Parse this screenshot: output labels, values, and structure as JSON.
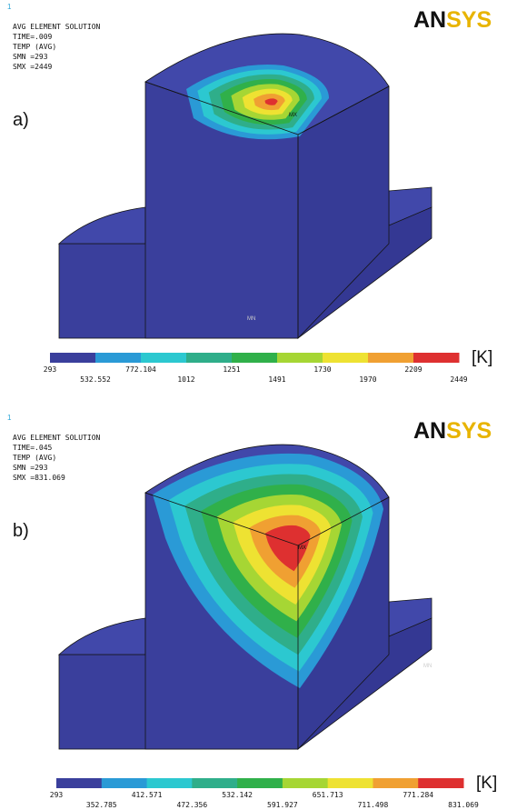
{
  "panels": [
    {
      "index": "1",
      "header": [
        "AVG ELEMENT SOLUTION",
        "TIME=.009",
        "TEMP      (AVG)",
        "SMN =293",
        "SMX =2449"
      ],
      "label": "a)",
      "logo": "ANSYS",
      "max_marker": "MX",
      "min_marker": "MN",
      "legend": {
        "ticks": [
          "293",
          "532.552",
          "772.104",
          "1012",
          "1251",
          "1491",
          "1730",
          "1970",
          "2209",
          "2449"
        ],
        "unit": "[K]",
        "colors": [
          "#3a3f9c",
          "#2a9ad6",
          "#2cc8d0",
          "#2fae8a",
          "#30b04a",
          "#a6d634",
          "#eee232",
          "#f0a032",
          "#de3030"
        ]
      }
    },
    {
      "index": "1",
      "header": [
        "AVG ELEMENT SOLUTION",
        "TIME=.045",
        "TEMP      (AVG)",
        "SMN =293",
        "SMX =831.069"
      ],
      "label": "b)",
      "logo": "ANSYS",
      "max_marker": "MX",
      "min_marker": "MN",
      "legend": {
        "ticks": [
          "293",
          "352.785",
          "412.571",
          "472.356",
          "532.142",
          "591.927",
          "651.713",
          "711.498",
          "771.284",
          "831.069"
        ],
        "unit": "[K]",
        "colors": [
          "#3a3f9c",
          "#2a9ad6",
          "#2cc8d0",
          "#2fae8a",
          "#30b04a",
          "#a6d634",
          "#eee232",
          "#f0a032",
          "#de3030"
        ]
      }
    }
  ]
}
